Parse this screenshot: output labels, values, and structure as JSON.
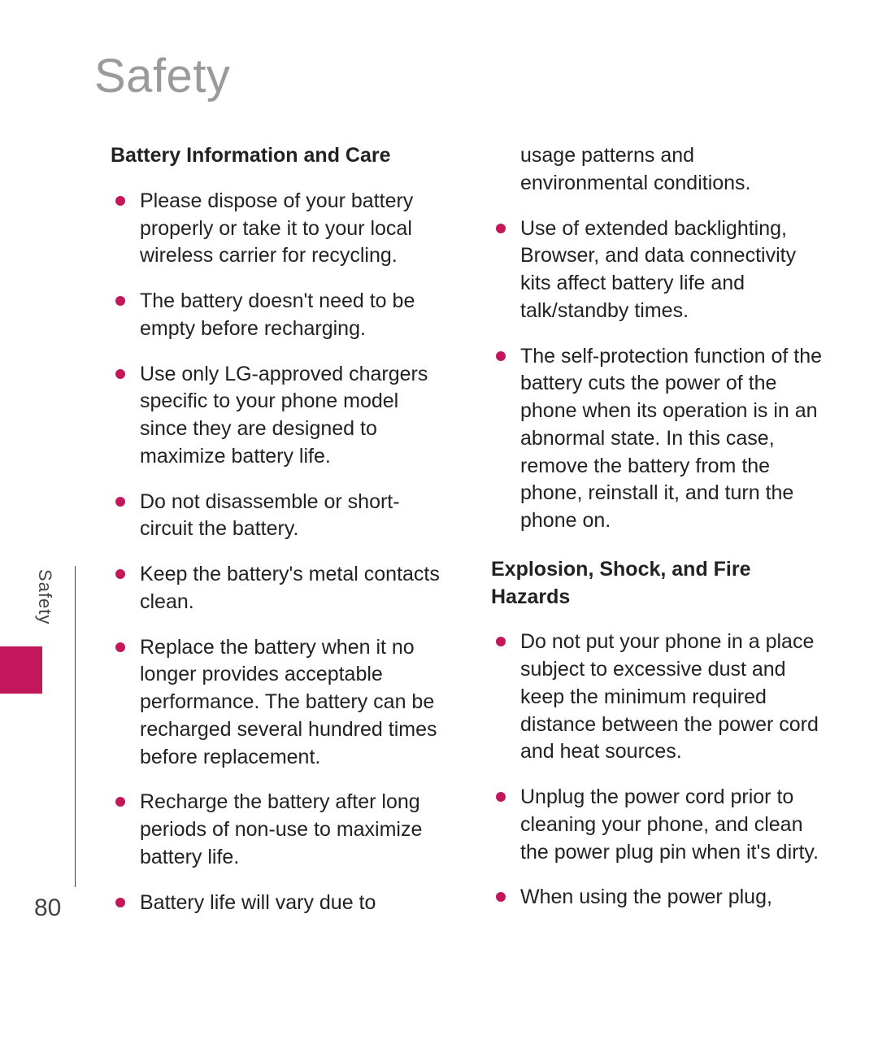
{
  "page": {
    "chapter_title": "Safety",
    "page_number": "80",
    "tab_label": "Safety"
  },
  "colors": {
    "accent": "#c2185b",
    "title_gray": "#9a9a9a",
    "text": "#222222",
    "background": "#ffffff"
  },
  "typography": {
    "title_fontsize_pt": 44,
    "title_weight": 300,
    "body_fontsize_pt": 19,
    "heading_weight": 700
  },
  "left_column": {
    "section_title": "Battery Information and Care",
    "items": [
      "Please dispose of your battery properly or take it to your local wireless carrier for recycling.",
      "The battery doesn't need to be empty before recharging.",
      "Use only LG-approved chargers specific to your phone model since they are designed to maximize battery life.",
      "Do not disassemble or short-circuit the battery.",
      "Keep the battery's metal contacts clean.",
      "Replace the battery when it no longer provides acceptable performance. The battery can be recharged several hundred times before replacement.",
      "Recharge the battery after long periods of non-use to maximize battery life.",
      "Battery life will vary due to"
    ]
  },
  "right_column": {
    "continuation_items": [
      "usage patterns and environmental conditions.",
      "Use of extended backlighting, Browser, and data connectivity kits affect battery life and talk/standby times.",
      "The self-protection function of the battery cuts the power of the phone when its operation is in an abnormal state. In this case, remove the battery from the phone, reinstall it, and turn the phone on."
    ],
    "section_title": "Explosion, Shock, and Fire Hazards",
    "items": [
      "Do not put your phone in a place subject to excessive dust and keep the minimum required distance between the power cord and heat sources.",
      "Unplug the power cord prior to cleaning your phone, and clean the power plug pin when it's dirty.",
      "When using the power plug,"
    ]
  }
}
